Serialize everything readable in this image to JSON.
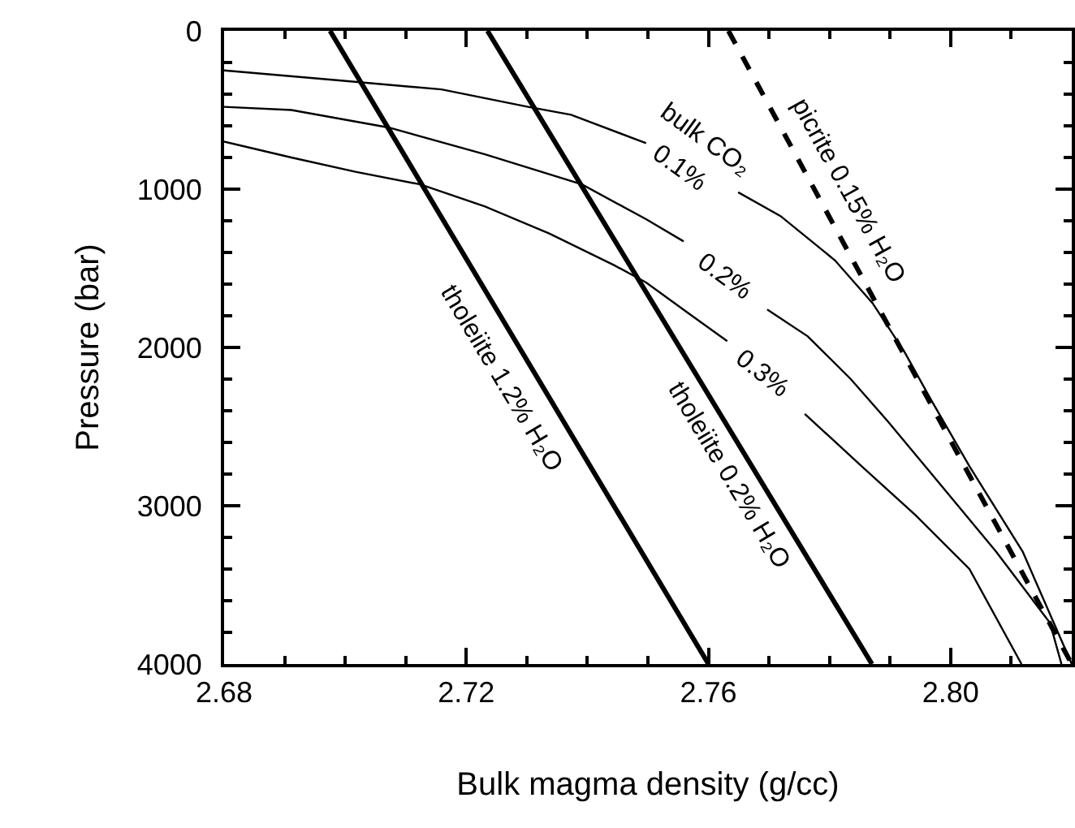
{
  "chart_data": {
    "type": "line",
    "xlabel": "Bulk magma density (g/cc)",
    "ylabel": "Pressure (bar)",
    "xlim": [
      2.68,
      2.82
    ],
    "ylim": [
      4000,
      0
    ],
    "xticks": [
      2.68,
      {
        "value": 2.69,
        "label": null
      },
      {
        "value": 2.7,
        "label": null
      },
      {
        "value": 2.71,
        "label": null
      },
      2.72,
      {
        "value": 2.73,
        "label": null
      },
      {
        "value": 2.74,
        "label": null
      },
      {
        "value": 2.75,
        "label": null
      },
      2.76,
      {
        "value": 2.77,
        "label": null
      },
      {
        "value": 2.78,
        "label": null
      },
      {
        "value": 2.79,
        "label": null
      },
      {
        "value": 2.8,
        "label": "2.80"
      },
      {
        "value": 2.81,
        "label": null
      }
    ],
    "yticks": [
      0,
      {
        "value": 200,
        "label": null
      },
      {
        "value": 400,
        "label": null
      },
      {
        "value": 600,
        "label": null
      },
      {
        "value": 800,
        "label": null
      },
      1000,
      {
        "value": 1200,
        "label": null
      },
      {
        "value": 1400,
        "label": null
      },
      {
        "value": 1600,
        "label": null
      },
      {
        "value": 1800,
        "label": null
      },
      2000,
      {
        "value": 2200,
        "label": null
      },
      {
        "value": 2400,
        "label": null
      },
      {
        "value": 2600,
        "label": null
      },
      {
        "value": 2800,
        "label": null
      },
      3000,
      {
        "value": 3200,
        "label": null
      },
      {
        "value": 3400,
        "label": null
      },
      {
        "value": 3600,
        "label": null
      },
      {
        "value": 3800,
        "label": null
      },
      4000
    ],
    "series": [
      {
        "color": "#000000",
        "line_style": "solid",
        "x": [
          2.6975,
          2.76
        ],
        "values": [
          0,
          4000
        ]
      },
      {
        "color": "#000000",
        "line_style": "solid",
        "x": [
          2.7235,
          2.787
        ],
        "values": [
          0,
          4000
        ]
      },
      {
        "color": "#000000",
        "line_style": "dashed",
        "x": [
          2.7633,
          2.82
        ],
        "values": [
          0,
          4000
        ]
      },
      {
        "color": "#000000",
        "line_style": "solid",
        "x": [
          2.68,
          2.6982,
          2.7159,
          2.7302,
          2.7373,
          2.7497,
          2.757,
          2.7649,
          2.7719,
          2.7809,
          2.7871,
          2.7924,
          2.7969,
          2.8031,
          2.8119,
          2.82
        ],
        "values": [
          250,
          310,
          370,
          480,
          530,
          710,
          null,
          1020,
          1170,
          1450,
          1720,
          2030,
          2340,
          2750,
          3290,
          4000
        ]
      },
      {
        "color": "#000000",
        "line_style": "solid",
        "x": [
          2.68,
          2.6911,
          2.7071,
          2.7231,
          2.7391,
          2.7497,
          2.7559,
          2.765,
          2.7697,
          2.7764,
          2.7835,
          2.7897,
          2.7986,
          2.8075,
          2.8164,
          2.8183
        ],
        "values": [
          480,
          500,
          610,
          780,
          970,
          1190,
          1330,
          null,
          1760,
          1930,
          2200,
          2470,
          2880,
          3290,
          3740,
          4000
        ]
      },
      {
        "color": "#000000",
        "line_style": "solid",
        "x": [
          2.68,
          2.6911,
          2.7017,
          2.7124,
          2.7231,
          2.7337,
          2.7444,
          2.7497,
          2.7569,
          2.7631,
          2.77,
          2.7759,
          2.7853,
          2.7942,
          2.8031,
          2.8117
        ],
        "values": [
          700,
          800,
          890,
          970,
          1110,
          1280,
          1480,
          1590,
          1790,
          1960,
          null,
          2420,
          2750,
          3060,
          3400,
          4000
        ]
      }
    ],
    "annotations": [
      "tholeiite 1.2% H₂O",
      "tholeiite 0.2% H₂O",
      "picrite 0.15% H₂O",
      "bulk CO₂",
      "0.1%",
      "0.2%",
      "0.3%"
    ]
  }
}
